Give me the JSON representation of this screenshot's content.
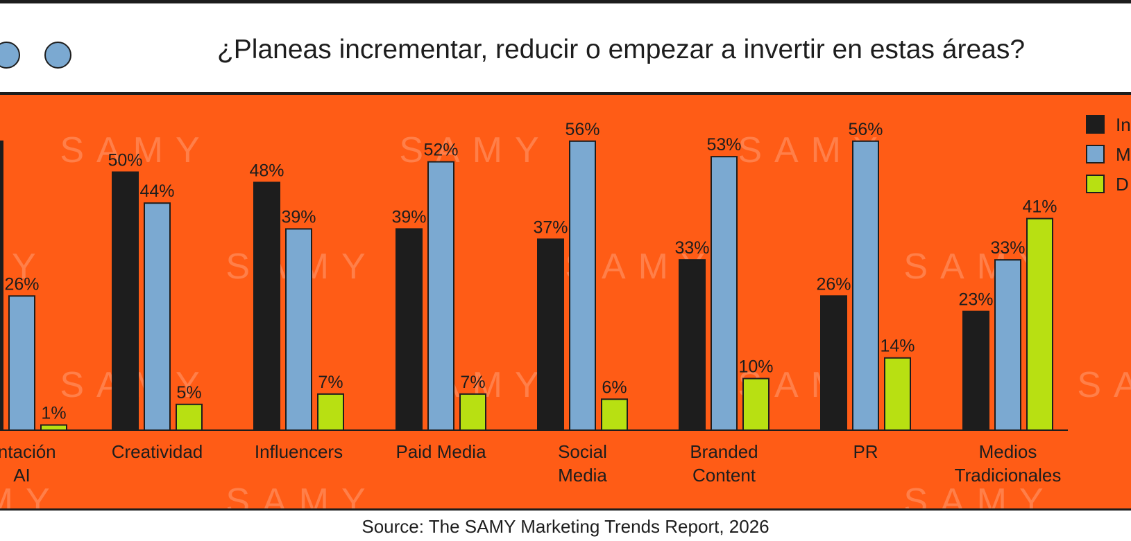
{
  "header": {
    "title": "¿Planeas incrementar, reducir o empezar a invertir en estas áreas?"
  },
  "source": "Source: The SAMY Marketing Trends Report, 2026",
  "watermark": "SAMY",
  "colors": {
    "background": "#ff5c16",
    "increment": "#1d1d1d",
    "maintain": "#7ba9d1",
    "decrease": "#b8e012",
    "text": "#1d1d1d"
  },
  "chart_data": {
    "type": "bar",
    "title": "¿Planeas incrementar, reducir o empezar a invertir en estas áreas?",
    "categories": [
      [
        "Implementación",
        "AI"
      ],
      [
        "Creatividad"
      ],
      [
        "Influencers"
      ],
      [
        "Paid Media"
      ],
      [
        "Social",
        "Media"
      ],
      [
        "Branded",
        "Content"
      ],
      [
        "PR"
      ],
      [
        "Medios",
        "Tradicionales"
      ]
    ],
    "visible_category_labels": [
      "entación",
      "AI"
    ],
    "series": [
      {
        "name": "In",
        "color": "#1d1d1d",
        "values": [
          56,
          50,
          48,
          39,
          37,
          33,
          26,
          23
        ],
        "labels": [
          "%",
          "50%",
          "48%",
          "39%",
          "37%",
          "33%",
          "26%",
          "23%"
        ]
      },
      {
        "name": "M",
        "color": "#7ba9d1",
        "values": [
          26,
          44,
          39,
          52,
          56,
          53,
          56,
          33
        ],
        "labels": [
          "26%",
          "44%",
          "39%",
          "52%",
          "56%",
          "53%",
          "56%",
          "33%"
        ]
      },
      {
        "name": "D",
        "color": "#b8e012",
        "values": [
          1,
          5,
          7,
          7,
          6,
          10,
          14,
          41
        ],
        "labels": [
          "1%",
          "5%",
          "7%",
          "7%",
          "6%",
          "10%",
          "14%",
          "41%"
        ]
      }
    ],
    "ylim": [
      0,
      60
    ],
    "grid": false,
    "legend": "top-right",
    "xlabel": "",
    "ylabel": ""
  }
}
